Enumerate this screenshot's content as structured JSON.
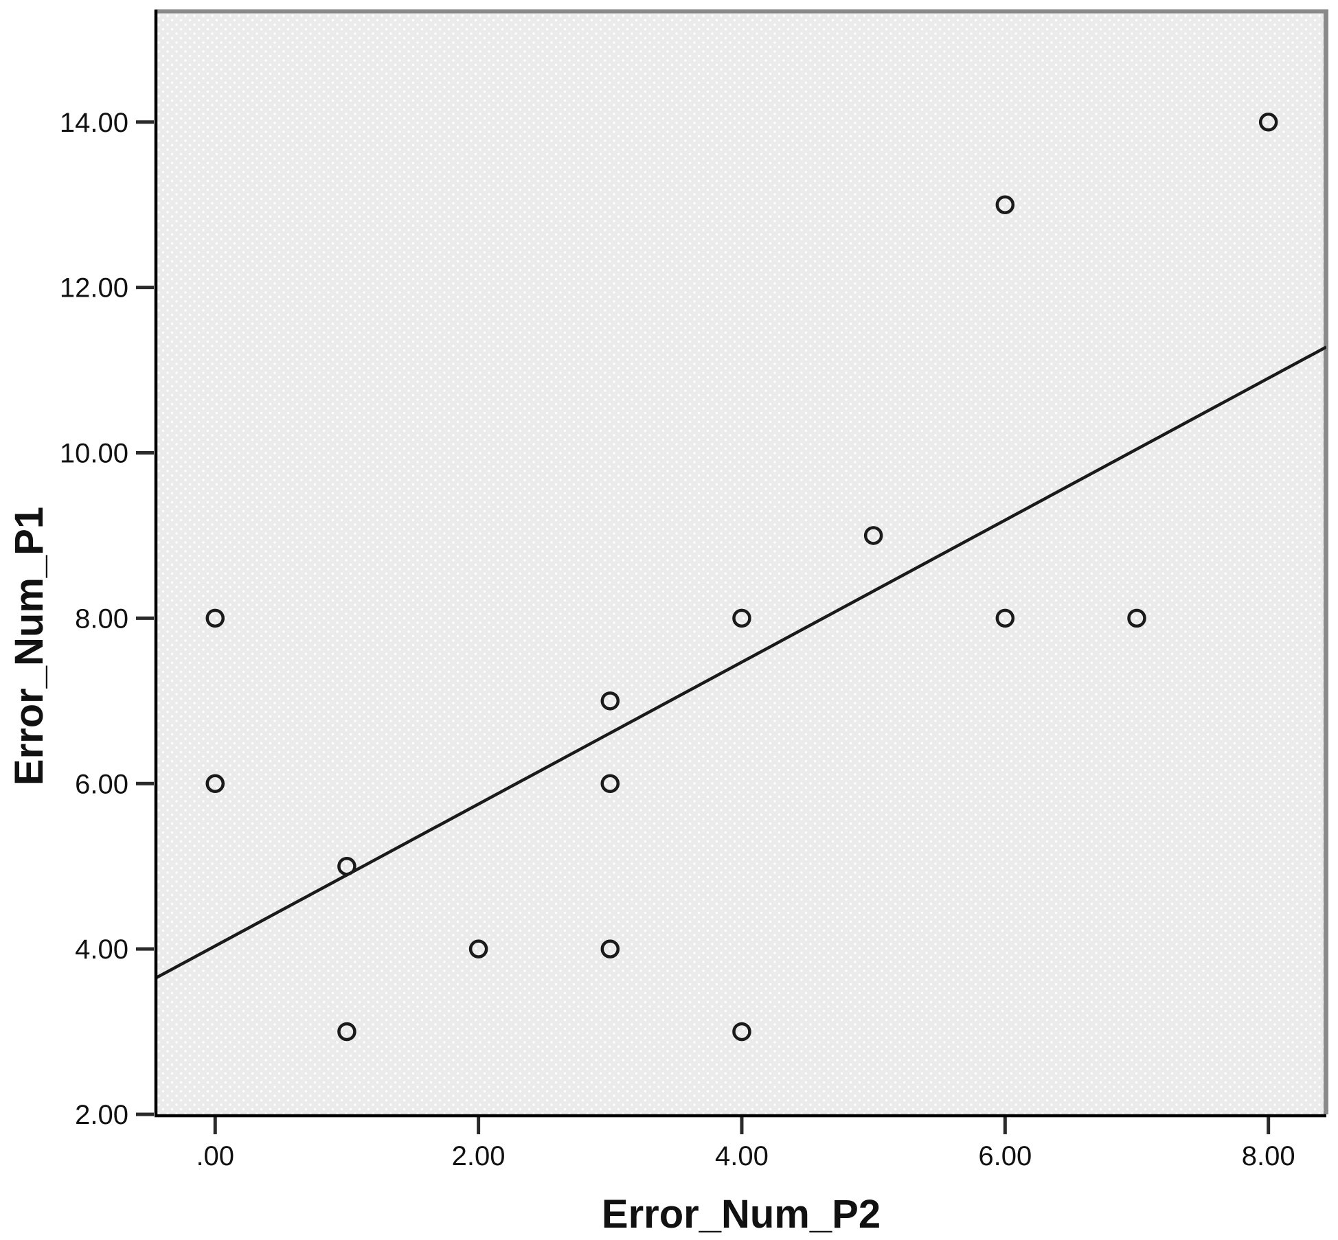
{
  "chart_data": {
    "type": "scatter",
    "title": "",
    "xlabel": "Error_Num_P2",
    "ylabel": "Error_Num_P1",
    "xlim": [
      -0.45,
      8.44
    ],
    "ylim": [
      2.0,
      15.36
    ],
    "grid": false,
    "legend": null,
    "marker": "open-circle",
    "x_ticks": [
      {
        "value": 0,
        "label": ".00"
      },
      {
        "value": 2,
        "label": "2.00"
      },
      {
        "value": 4,
        "label": "4.00"
      },
      {
        "value": 6,
        "label": "6.00"
      },
      {
        "value": 8,
        "label": "8.00"
      }
    ],
    "y_ticks": [
      {
        "value": 2,
        "label": "2.00"
      },
      {
        "value": 4,
        "label": "4.00"
      },
      {
        "value": 6,
        "label": "6.00"
      },
      {
        "value": 8,
        "label": "8.00"
      },
      {
        "value": 10,
        "label": "10.00"
      },
      {
        "value": 12,
        "label": "12.00"
      },
      {
        "value": 14,
        "label": "14.00"
      }
    ],
    "points": [
      {
        "x": 0,
        "y": 8
      },
      {
        "x": 0,
        "y": 6
      },
      {
        "x": 1,
        "y": 5
      },
      {
        "x": 1,
        "y": 3
      },
      {
        "x": 2,
        "y": 4
      },
      {
        "x": 3,
        "y": 7
      },
      {
        "x": 3,
        "y": 6
      },
      {
        "x": 3,
        "y": 4
      },
      {
        "x": 4,
        "y": 8
      },
      {
        "x": 4,
        "y": 3
      },
      {
        "x": 5,
        "y": 9
      },
      {
        "x": 6,
        "y": 13
      },
      {
        "x": 6,
        "y": 8
      },
      {
        "x": 7,
        "y": 8
      },
      {
        "x": 8,
        "y": 14
      }
    ],
    "fit_line": {
      "x1": -0.45,
      "y1": 3.65,
      "x2": 8.44,
      "y2": 11.28,
      "slope": 0.86,
      "intercept": 4.04
    },
    "colors": {
      "panel_bg": "#ebebeb",
      "panel_dot": "#ffffff",
      "axis": "#000000",
      "frame": "#8a8a8a",
      "tick": "#2a2a2a",
      "marker": "#1a1a1a",
      "fit_line": "#1a1a1a",
      "text": "#111111"
    }
  }
}
